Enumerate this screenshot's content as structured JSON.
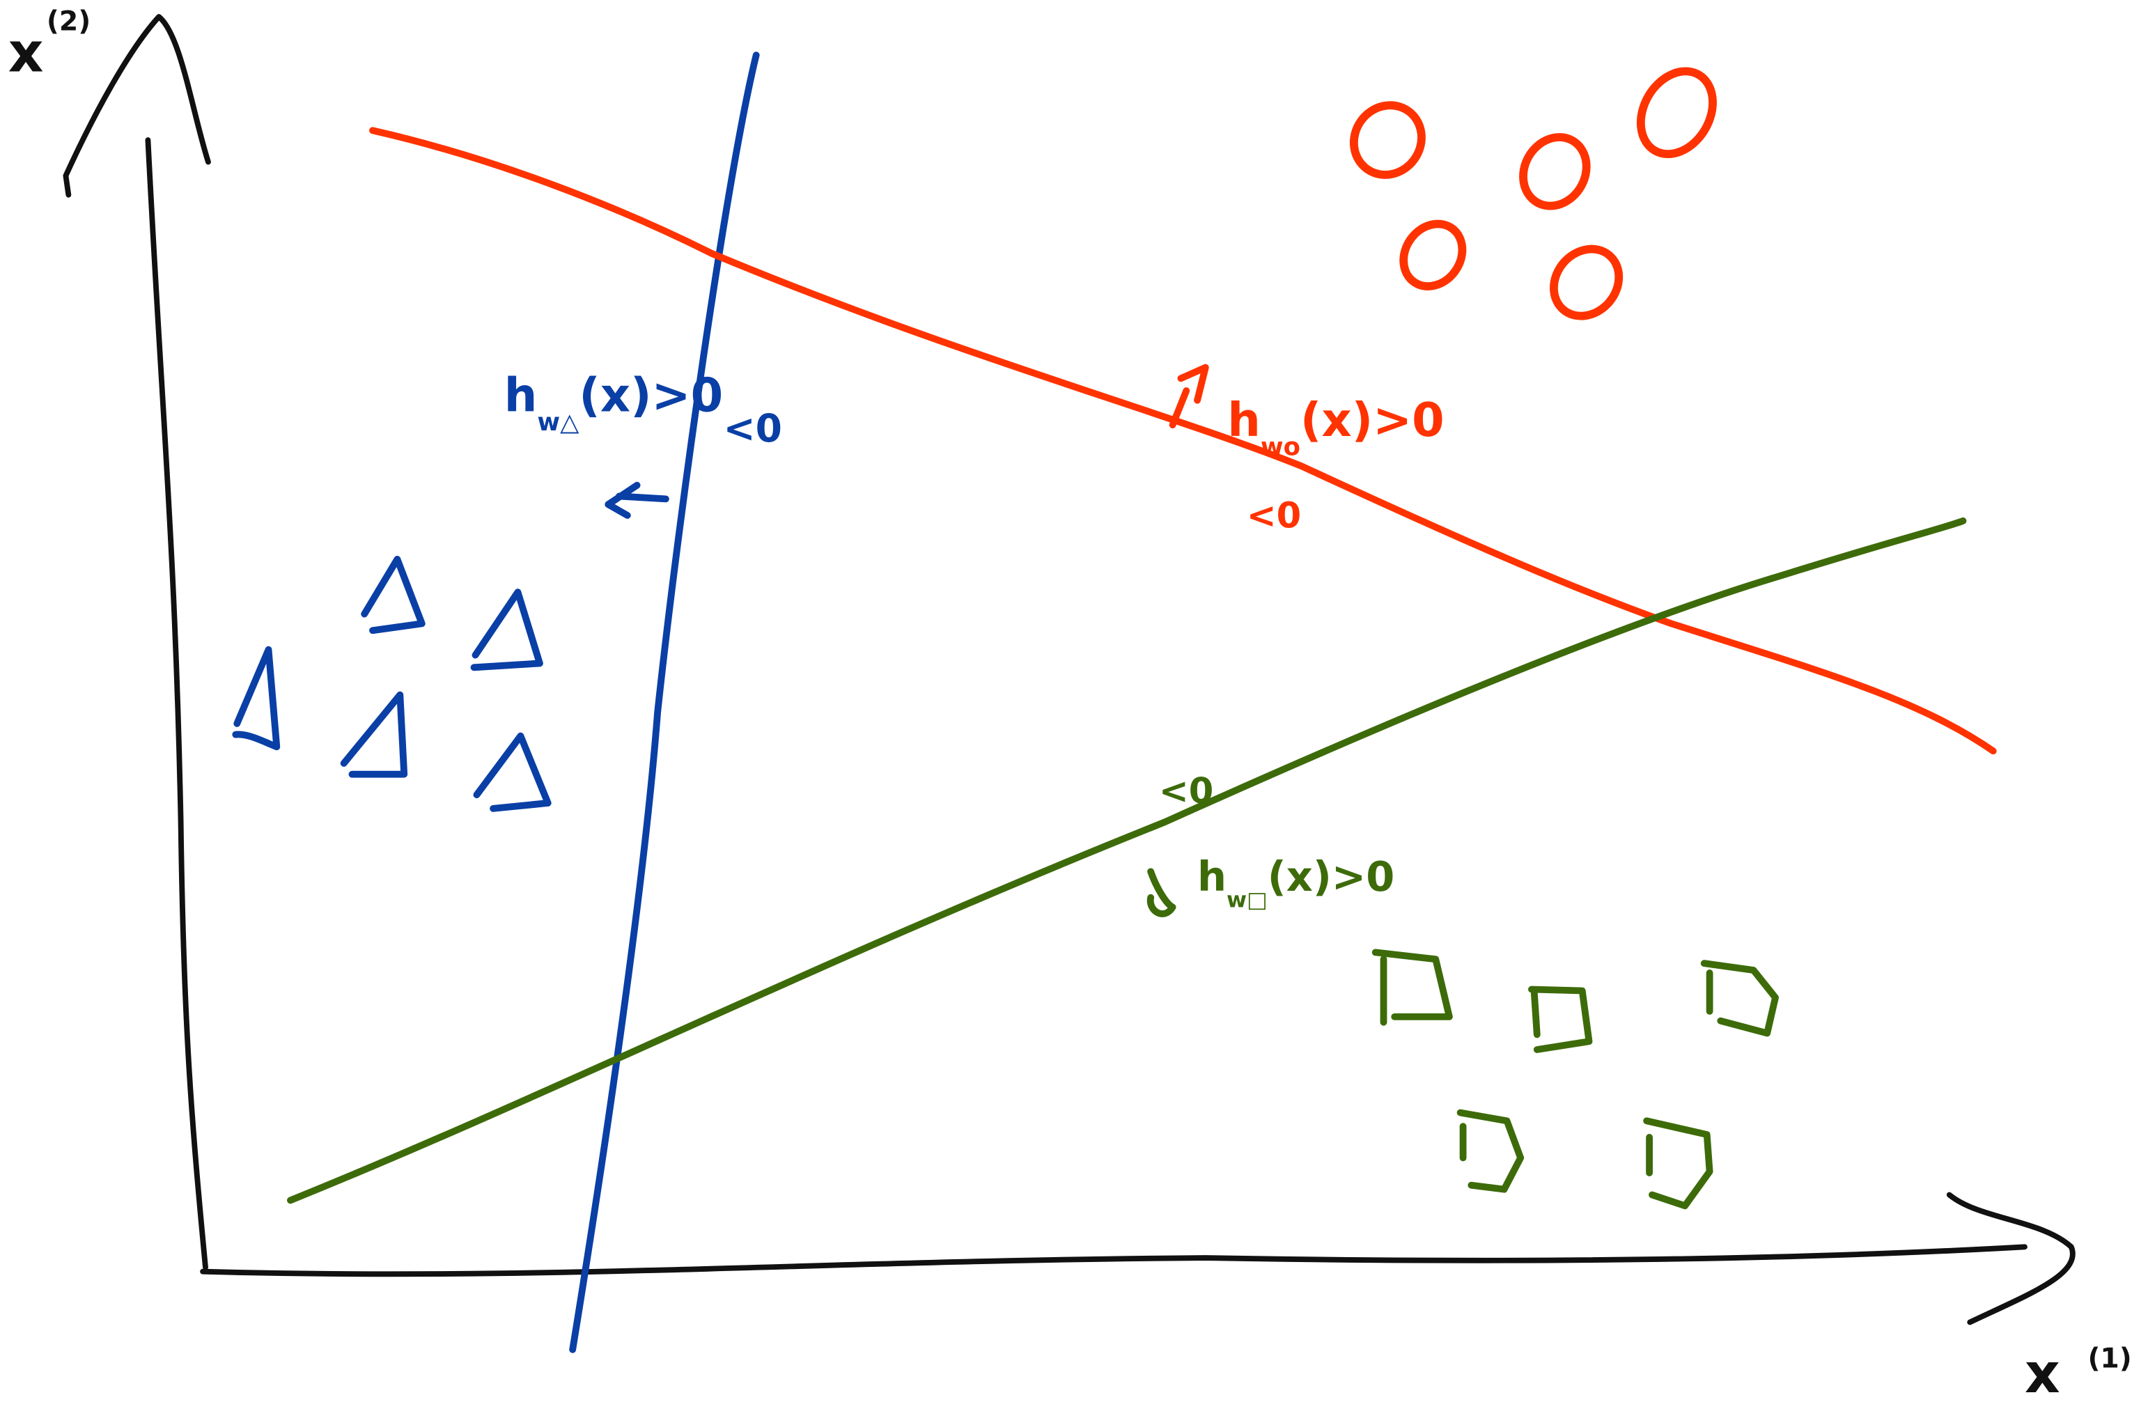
{
  "axes": {
    "x_label": "x",
    "x_label_sup": "(1)",
    "y_label": "x",
    "y_label_sup": "(2)",
    "color": "#111111"
  },
  "classifiers": [
    {
      "id": "triangle",
      "color": "#0a3fa6",
      "label_main": "h",
      "label_sub": "w△",
      "label_rest": "(x)>0",
      "negative_label": "<0",
      "arrow": "left-arrow-icon"
    },
    {
      "id": "circle",
      "color": "#ff3300",
      "label_main": "h",
      "label_sub": "wo",
      "label_rest": "(x)>0",
      "negative_label": "<0",
      "arrow": "up-arrow-icon"
    },
    {
      "id": "square",
      "color": "#3d6b0a",
      "label_main": "h",
      "label_sub": "w□",
      "label_rest": "(x)>0",
      "negative_label": "<0",
      "arrow": "down-arrow-icon"
    }
  ],
  "points": {
    "circles_count": 5,
    "triangles_count": 5,
    "squares_count": 5
  }
}
